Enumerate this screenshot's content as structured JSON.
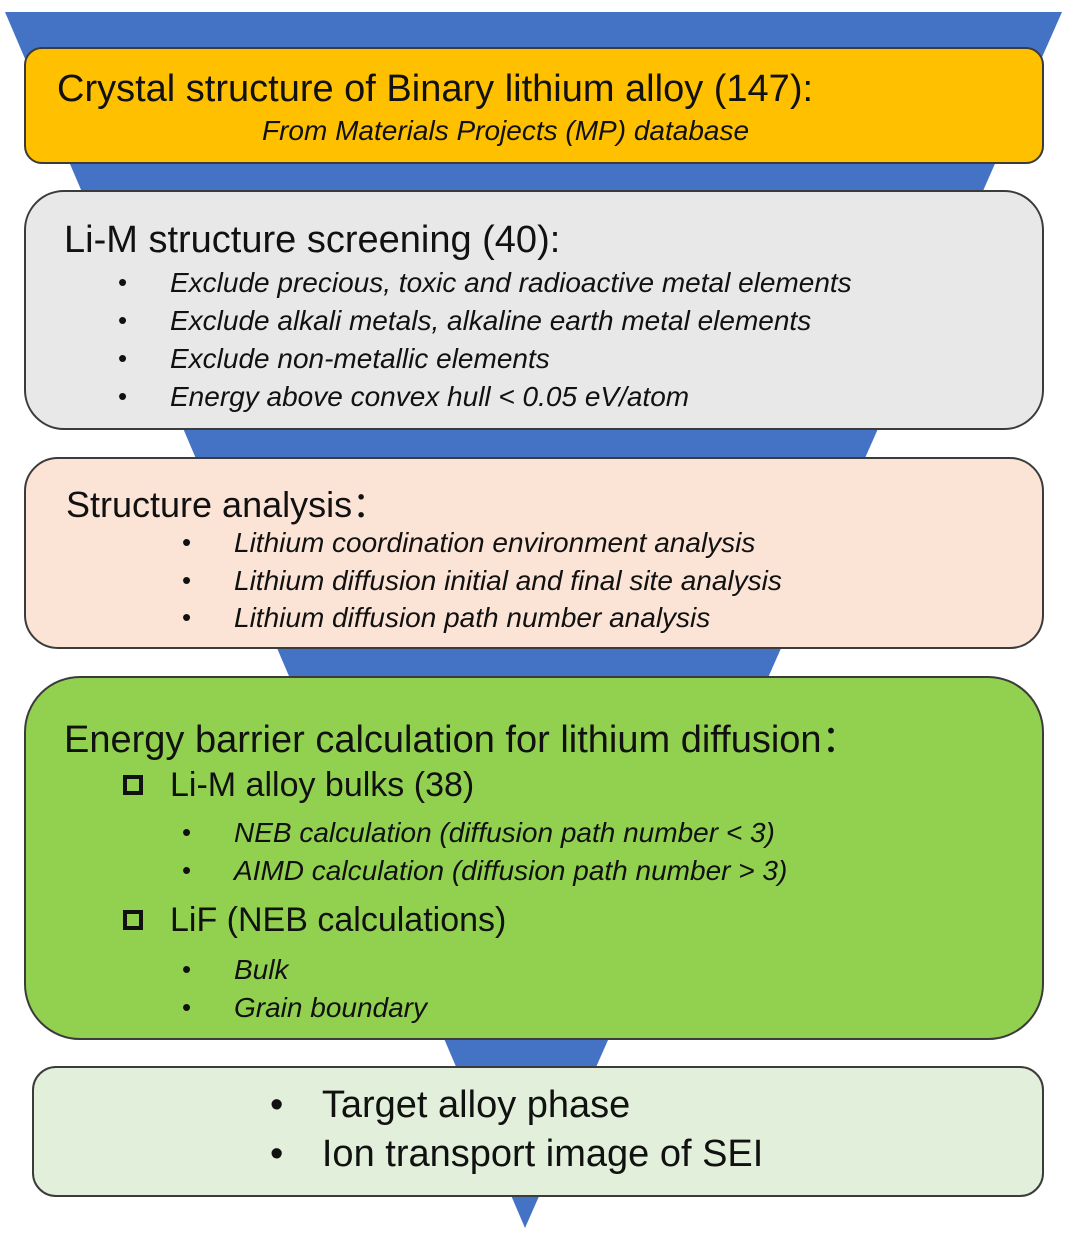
{
  "colors": {
    "funnel": "#4472c4",
    "box1": "#ffc000",
    "box2": "#e8e8e8",
    "box3": "#fbe4d6",
    "box4": "#92d050",
    "box5": "#e2efda"
  },
  "step1": {
    "title": "Crystal structure of Binary lithium alloy (147):",
    "subtitle": "From Materials Projects (MP) database"
  },
  "step2": {
    "title": "Li-M structure screening (40):",
    "items": [
      "Exclude precious, toxic and radioactive metal elements",
      "Exclude alkali metals, alkaline earth metal elements",
      "Exclude non-metallic elements",
      "Energy above convex hull < 0.05 eV/atom"
    ]
  },
  "step3": {
    "title": "Structure analysis：",
    "items": [
      "Lithium coordination environment analysis",
      "Lithium diffusion initial and final site analysis",
      "Lithium diffusion path number analysis"
    ]
  },
  "step4": {
    "title": "Energy barrier calculation for lithium diffusion：",
    "groups": [
      {
        "label": "Li-M alloy bulks (38)",
        "items": [
          "NEB calculation (diffusion path number < 3)",
          "AIMD calculation (diffusion path number > 3)"
        ]
      },
      {
        "label": "LiF (NEB calculations)",
        "items": [
          "Bulk",
          "Grain boundary"
        ]
      }
    ]
  },
  "step5": {
    "items": [
      "Target alloy phase",
      "Ion transport image of SEI"
    ]
  },
  "bullet": "•"
}
